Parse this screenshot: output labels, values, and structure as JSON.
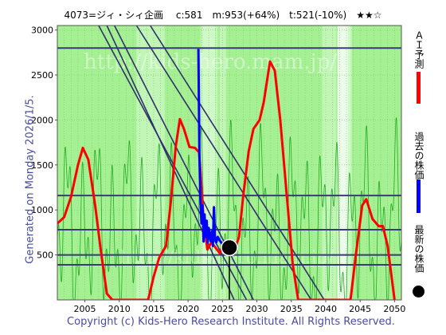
{
  "title": "4073=ジィ・シィ企画　 c:581　m:953(+64%)　t:521(-10%)　★★☆",
  "side_note": "Generated on Monday 2026/1/5.",
  "copyright": "Copyright (c) Kids-Hero Research Institute. All Rights Reserved.",
  "watermark": "http://kids-hero.mam.jp/",
  "legend": {
    "ai_forecast": "ＡＩ予測",
    "past_price": "過去の株価",
    "latest_price": "最新の株価"
  },
  "colors": {
    "plot_bg": "#a6f094",
    "band_light": "#c8f7bf",
    "band_white": "#ffffff",
    "ai_line": "#ff0000",
    "price_line": "#0000ff",
    "thin_line": "#22aa22",
    "h_lines": "#3a3a7a",
    "trend_lines": "#30306a"
  },
  "chart_data": {
    "type": "line",
    "xlim": [
      2001,
      2051
    ],
    "ylim": [
      0,
      3050
    ],
    "x_ticks": [
      2005,
      2010,
      2015,
      2020,
      2025,
      2030,
      2035,
      2040,
      2045,
      2050
    ],
    "y_ticks": [
      500,
      1000,
      1500,
      2000,
      2500,
      3000
    ],
    "horizontal_lines": [
      2800,
      1160,
      780,
      500,
      390
    ],
    "trend_lines": [
      {
        "x1": 2009.3,
        "y1": 3050,
        "x2": 2029.5,
        "y2": 0
      },
      {
        "x1": 2008.2,
        "y1": 3050,
        "x2": 2026.7,
        "y2": 0
      },
      {
        "x1": 2007.0,
        "y1": 3050,
        "x2": 2028.5,
        "y2": 0
      },
      {
        "x1": 2012.5,
        "y1": 3050,
        "x2": 2037.9,
        "y2": 0
      },
      {
        "x1": 2014.5,
        "y1": 3050,
        "x2": 2039.8,
        "y2": 0
      }
    ],
    "series": [
      {
        "name": "ＡＩ予測",
        "points": [
          [
            2001,
            850
          ],
          [
            2002,
            920
          ],
          [
            2003,
            1150
          ],
          [
            2004,
            1500
          ],
          [
            2004.7,
            1690
          ],
          [
            2005.5,
            1560
          ],
          [
            2006.5,
            1050
          ],
          [
            2007.3,
            560
          ],
          [
            2008.2,
            70
          ],
          [
            2009,
            0
          ],
          [
            2014.2,
            0
          ],
          [
            2015,
            260
          ],
          [
            2015.8,
            470
          ],
          [
            2016.8,
            600
          ],
          [
            2017.5,
            1100
          ],
          [
            2018.2,
            1700
          ],
          [
            2018.8,
            2010
          ],
          [
            2019.4,
            1900
          ],
          [
            2020.2,
            1700
          ],
          [
            2021,
            1690
          ],
          [
            2021.6,
            1640
          ],
          [
            2022.3,
            850
          ],
          [
            2022.8,
            560
          ],
          [
            2023.4,
            640
          ],
          [
            2024,
            580
          ],
          [
            2024.6,
            520
          ],
          [
            2025.2,
            640
          ],
          [
            2026,
            560
          ],
          [
            2026.7,
            540
          ],
          [
            2027.4,
            700
          ],
          [
            2028,
            1150
          ],
          [
            2028.8,
            1650
          ],
          [
            2029.5,
            1900
          ],
          [
            2030.4,
            2000
          ],
          [
            2031,
            2200
          ],
          [
            2031.9,
            2650
          ],
          [
            2032.6,
            2550
          ],
          [
            2033.4,
            2000
          ],
          [
            2034.3,
            1200
          ],
          [
            2035.2,
            400
          ],
          [
            2036,
            0
          ],
          [
            2043.6,
            0
          ],
          [
            2044.3,
            450
          ],
          [
            2045.3,
            1050
          ],
          [
            2045.9,
            1120
          ],
          [
            2046.8,
            900
          ],
          [
            2047.7,
            820
          ],
          [
            2048.3,
            820
          ],
          [
            2049,
            600
          ],
          [
            2050,
            0
          ]
        ]
      },
      {
        "name": "過去の株価",
        "points": [
          [
            2021.5,
            2790
          ],
          [
            2021.65,
            1600
          ],
          [
            2021.8,
            1100
          ],
          [
            2021.95,
            850
          ],
          [
            2022.1,
            1050
          ],
          [
            2022.25,
            650
          ],
          [
            2022.4,
            950
          ],
          [
            2022.55,
            700
          ],
          [
            2022.7,
            880
          ],
          [
            2022.85,
            640
          ],
          [
            2023.0,
            800
          ],
          [
            2023.15,
            700
          ],
          [
            2023.3,
            650
          ],
          [
            2023.45,
            760
          ],
          [
            2023.6,
            600
          ],
          [
            2023.75,
            1030
          ],
          [
            2023.9,
            700
          ],
          [
            2024.1,
            640
          ],
          [
            2024.3,
            700
          ],
          [
            2024.6,
            660
          ],
          [
            2025.0,
            620
          ],
          [
            2025.4,
            600
          ],
          [
            2025.8,
            590
          ],
          [
            2026.0,
            581
          ]
        ]
      }
    ],
    "latest_point": {
      "name": "最新の株価",
      "x": 2026.0,
      "y": 581
    }
  }
}
